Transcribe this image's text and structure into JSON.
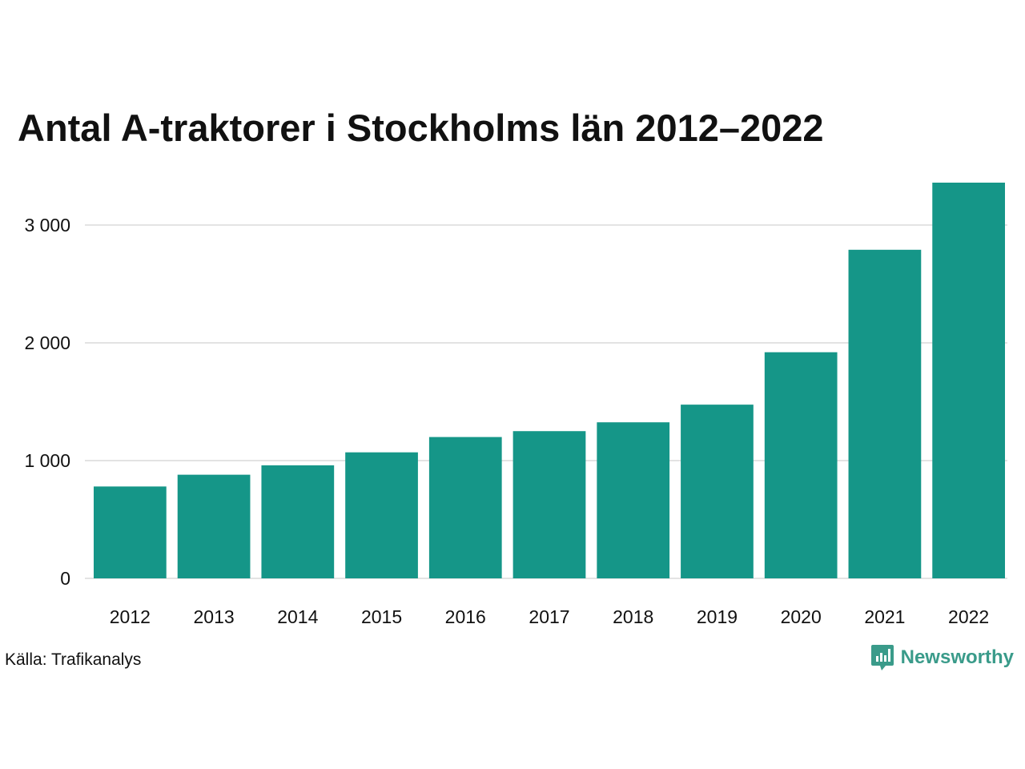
{
  "chart_data": {
    "type": "bar",
    "title": "Antal A-traktorer i Stockholms län 2012–2022",
    "categories": [
      "2012",
      "2013",
      "2014",
      "2015",
      "2016",
      "2017",
      "2018",
      "2019",
      "2020",
      "2021",
      "2022"
    ],
    "values": [
      780,
      880,
      960,
      1070,
      1200,
      1250,
      1325,
      1475,
      1920,
      2790,
      3360
    ],
    "ylim": [
      0,
      3360
    ],
    "yticks": [
      0,
      1000,
      2000,
      3000
    ],
    "ytick_labels": [
      "0",
      "1 000",
      "2 000",
      "3 000"
    ],
    "grid": true,
    "bar_color": "#159688",
    "grid_color": "#e3e3e3"
  },
  "source": "Källa: Trafikanalys",
  "brand": {
    "name": "Newsworthy",
    "icon": "newsworthy-logo-icon",
    "color": "#3a9b8a"
  }
}
